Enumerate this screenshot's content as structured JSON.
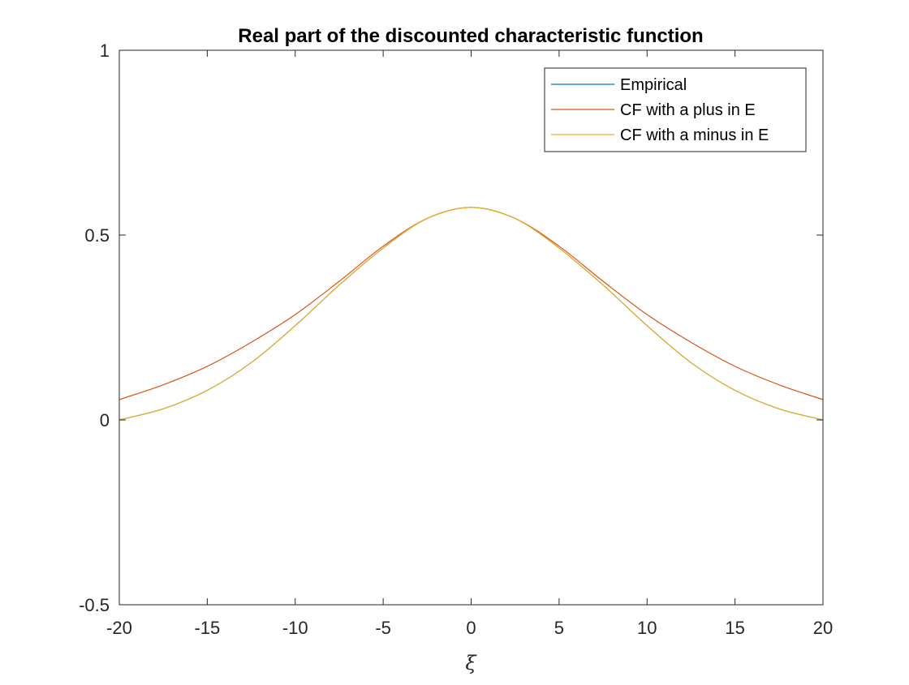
{
  "chart_data": {
    "type": "line",
    "title": "Real part of the discounted characteristic function",
    "xlabel": "ξ",
    "ylabel": "",
    "xlim": [
      -20,
      20
    ],
    "ylim": [
      -0.5,
      1
    ],
    "xticks": [
      -20,
      -15,
      -10,
      -5,
      0,
      5,
      10,
      15,
      20
    ],
    "xtick_labels": [
      "-20",
      "-15",
      "-10",
      "-5",
      "0",
      "5",
      "10",
      "15",
      "20"
    ],
    "yticks": [
      -0.5,
      0,
      0.5,
      1
    ],
    "ytick_labels": [
      "-0.5",
      "0",
      "0.5",
      "1"
    ],
    "grid": false,
    "legend_position": "top-right",
    "x": [
      -20,
      -17.5,
      -15,
      -12.5,
      -10,
      -7.5,
      -5,
      -2.5,
      0,
      2.5,
      5,
      7.5,
      10,
      12.5,
      15,
      17.5,
      20
    ],
    "series": [
      {
        "name": "Empirical",
        "color": "#0072BD",
        "values": [
          0.0,
          0.03,
          0.08,
          0.155,
          0.255,
          0.365,
          0.465,
          0.545,
          0.575,
          0.545,
          0.465,
          0.365,
          0.255,
          0.155,
          0.08,
          0.03,
          0.0
        ]
      },
      {
        "name": "CF with a plus in E",
        "color": "#D95319",
        "values": [
          0.055,
          0.095,
          0.145,
          0.21,
          0.285,
          0.375,
          0.47,
          0.545,
          0.575,
          0.545,
          0.47,
          0.375,
          0.285,
          0.21,
          0.145,
          0.095,
          0.055
        ]
      },
      {
        "name": "CF with a minus in E",
        "color": "#EDB120",
        "values": [
          0.0,
          0.03,
          0.08,
          0.155,
          0.255,
          0.365,
          0.465,
          0.545,
          0.575,
          0.545,
          0.465,
          0.365,
          0.255,
          0.155,
          0.08,
          0.03,
          0.0
        ]
      }
    ]
  }
}
